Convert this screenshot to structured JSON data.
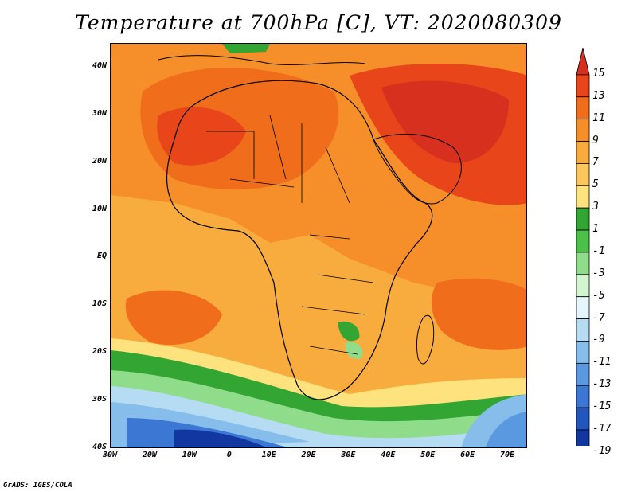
{
  "title": "Temperature at 700hPa [C], VT: 2020080309",
  "credit": "GrADS: IGES/COLA",
  "map": {
    "lat_labels": [
      "40N",
      "30N",
      "20N",
      "10N",
      "EQ",
      "10S",
      "20S",
      "30S",
      "40S"
    ],
    "lon_labels": [
      "30W",
      "20W",
      "10W",
      "0",
      "10E",
      "20E",
      "30E",
      "40E",
      "50E",
      "60E",
      "70E"
    ],
    "lat_range": [
      -40,
      45
    ],
    "lon_range": [
      -30,
      75
    ]
  },
  "colorbar": {
    "labels": [
      "15",
      "13",
      "11",
      "9",
      "7",
      "5",
      "3",
      "1",
      "-1",
      "-3",
      "-5",
      "-7",
      "-9",
      "-11",
      "-13",
      "-15",
      "-17",
      "-19"
    ],
    "colors": [
      "#d7301f",
      "#e8451a",
      "#f06d1b",
      "#f68f2a",
      "#f9ac3e",
      "#fbc75c",
      "#fde27e",
      "#33a532",
      "#4cc14a",
      "#8fdc8a",
      "#d2f5d0",
      "#e6f5fb",
      "#b5dcf3",
      "#86bdea",
      "#5a98e0",
      "#3b77d3",
      "#2356bd",
      "#1337a0",
      "#0a1c7a"
    ]
  }
}
